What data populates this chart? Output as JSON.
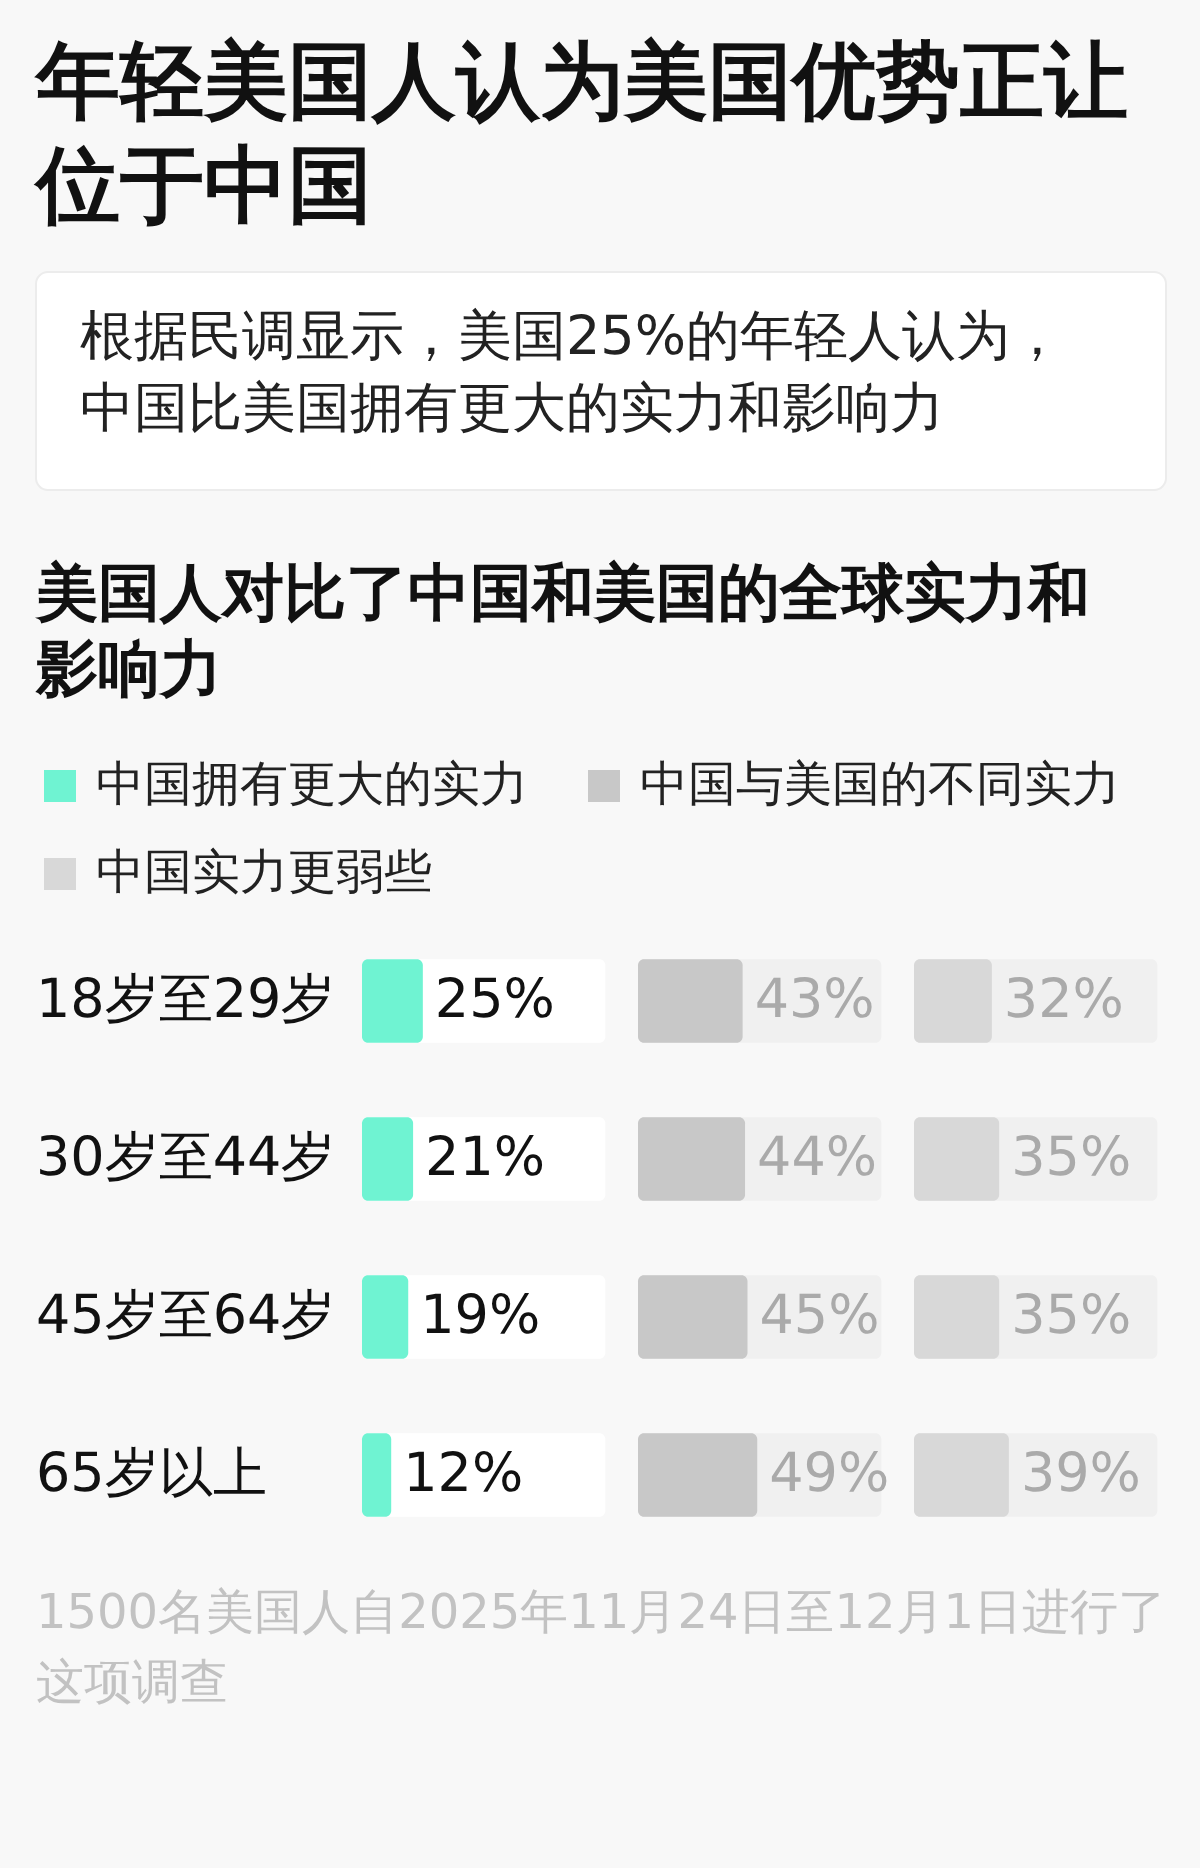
{
  "chart_data": [
    {
      "type": "bar",
      "orientation": "horizontal",
      "title": "年轻美国人认为美国优势正让位于中国",
      "subtitle": "根据民调显示，美国25%的年轻人认为，中国比美国拥有更大的实力和影响力",
      "annotations": [
        "美国人对比了中国和美国的全球实力和影响力",
        "1500名美国人自2025年11月24日至12月1日进行了这项调查"
      ],
      "legend": "top",
      "categories": [
        "18岁至29岁",
        "30岁至44岁",
        "45岁至64岁",
        "65岁以上"
      ],
      "series": [
        {
          "name": "中国拥有更大的实力",
          "color": "#6ff3d2",
          "values": [
            25,
            21,
            19,
            12
          ],
          "value_labels": [
            "25%",
            "21%",
            "19%",
            "12%"
          ]
        }
      ],
      "xlim": [
        0,
        100
      ],
      "tick_labels": "y"
    },
    {
      "type": "bar",
      "orientation": "horizontal",
      "legend": "top",
      "categories": [
        null,
        null,
        null,
        null
      ],
      "series": [
        {
          "name": "中国与美国的不同实力",
          "color": "#c8c8c8",
          "values": [
            43,
            44,
            45,
            49
          ],
          "value_labels": [
            "43%",
            "44%",
            "45%",
            "49%"
          ]
        }
      ],
      "xlim": [
        0,
        100
      ],
      "tick_labels": false
    },
    {
      "type": "bar",
      "orientation": "horizontal",
      "legend": "top",
      "categories": [
        null,
        null,
        null,
        null
      ],
      "series": [
        {
          "name": "中国实力更弱些",
          "color": "#d8d8d8",
          "values": [
            32,
            35,
            35,
            39
          ],
          "value_labels": [
            "32%",
            "35%",
            "35%",
            "39%"
          ]
        }
      ],
      "xlim": [
        0,
        100
      ],
      "tick_labels": false
    }
  ]
}
